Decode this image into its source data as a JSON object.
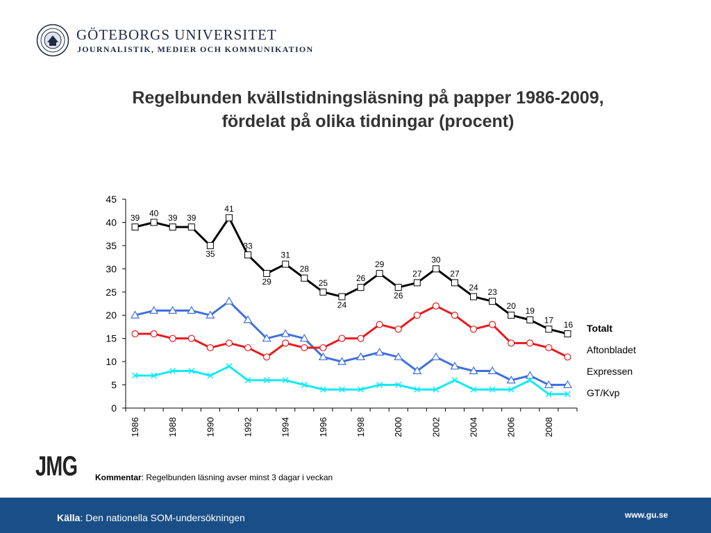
{
  "header": {
    "university": "GÖTEBORGS UNIVERSITET",
    "department": "JOURNALISTIK, MEDIER OCH KOMMUNIKATION",
    "seal_icon": "university-seal-icon"
  },
  "title_line1": "Regelbunden kvällstidningsläsning på papper 1986-2009,",
  "title_line2": "fördelat på olika tidningar (procent)",
  "logo_text": "JMG",
  "comment": {
    "label": "Kommentar",
    "text": ": Regelbunden läsning avser minst 3 dagar i veckan"
  },
  "footer": {
    "source_label": "Källa",
    "source_text": ": Den nationella SOM-undersökningen",
    "website": "www.gu.se",
    "background_color": "#1a4e86"
  },
  "chart_data": {
    "type": "line",
    "x": [
      1986,
      1987,
      1988,
      1989,
      1990,
      1991,
      1992,
      1993,
      1994,
      1995,
      1996,
      1997,
      1998,
      1999,
      2000,
      2001,
      2002,
      2003,
      2004,
      2005,
      2006,
      2007,
      2008,
      2009
    ],
    "x_tick_labels": [
      "1986",
      "1988",
      "1990",
      "1992",
      "1994",
      "1996",
      "1998",
      "2000",
      "2002",
      "2004",
      "2006",
      "2008"
    ],
    "ylim": [
      0,
      45
    ],
    "y_ticks": [
      0,
      5,
      10,
      15,
      20,
      25,
      30,
      35,
      40,
      45
    ],
    "grid": false,
    "legend_position": "right",
    "series": [
      {
        "name": "Totalt",
        "color": "#000000",
        "marker": "square",
        "labeled": true,
        "values": [
          39,
          40,
          39,
          39,
          35,
          41,
          33,
          29,
          31,
          28,
          25,
          24,
          26,
          29,
          26,
          27,
          30,
          27,
          24,
          23,
          20,
          19,
          17,
          16
        ]
      },
      {
        "name": "Aftonbladet",
        "color": "#3f6fe0",
        "marker": "triangle",
        "values": [
          20,
          21,
          21,
          21,
          20,
          23,
          19,
          15,
          16,
          15,
          11,
          10,
          11,
          12,
          11,
          8,
          11,
          9,
          8,
          8,
          6,
          7,
          5,
          5
        ]
      },
      {
        "name": "Expressen",
        "color": "#e8191c",
        "marker": "circle",
        "values": [
          16,
          16,
          15,
          15,
          13,
          14,
          13,
          11,
          14,
          13,
          13,
          15,
          15,
          18,
          17,
          20,
          22,
          20,
          17,
          18,
          14,
          14,
          13,
          11
        ]
      },
      {
        "name": "GT/Kvp",
        "color": "#14eaf2",
        "marker": "x",
        "values": [
          7,
          7,
          8,
          8,
          7,
          9,
          6,
          6,
          6,
          5,
          4,
          4,
          4,
          5,
          5,
          4,
          4,
          6,
          4,
          4,
          4,
          6,
          3,
          3
        ]
      }
    ]
  }
}
